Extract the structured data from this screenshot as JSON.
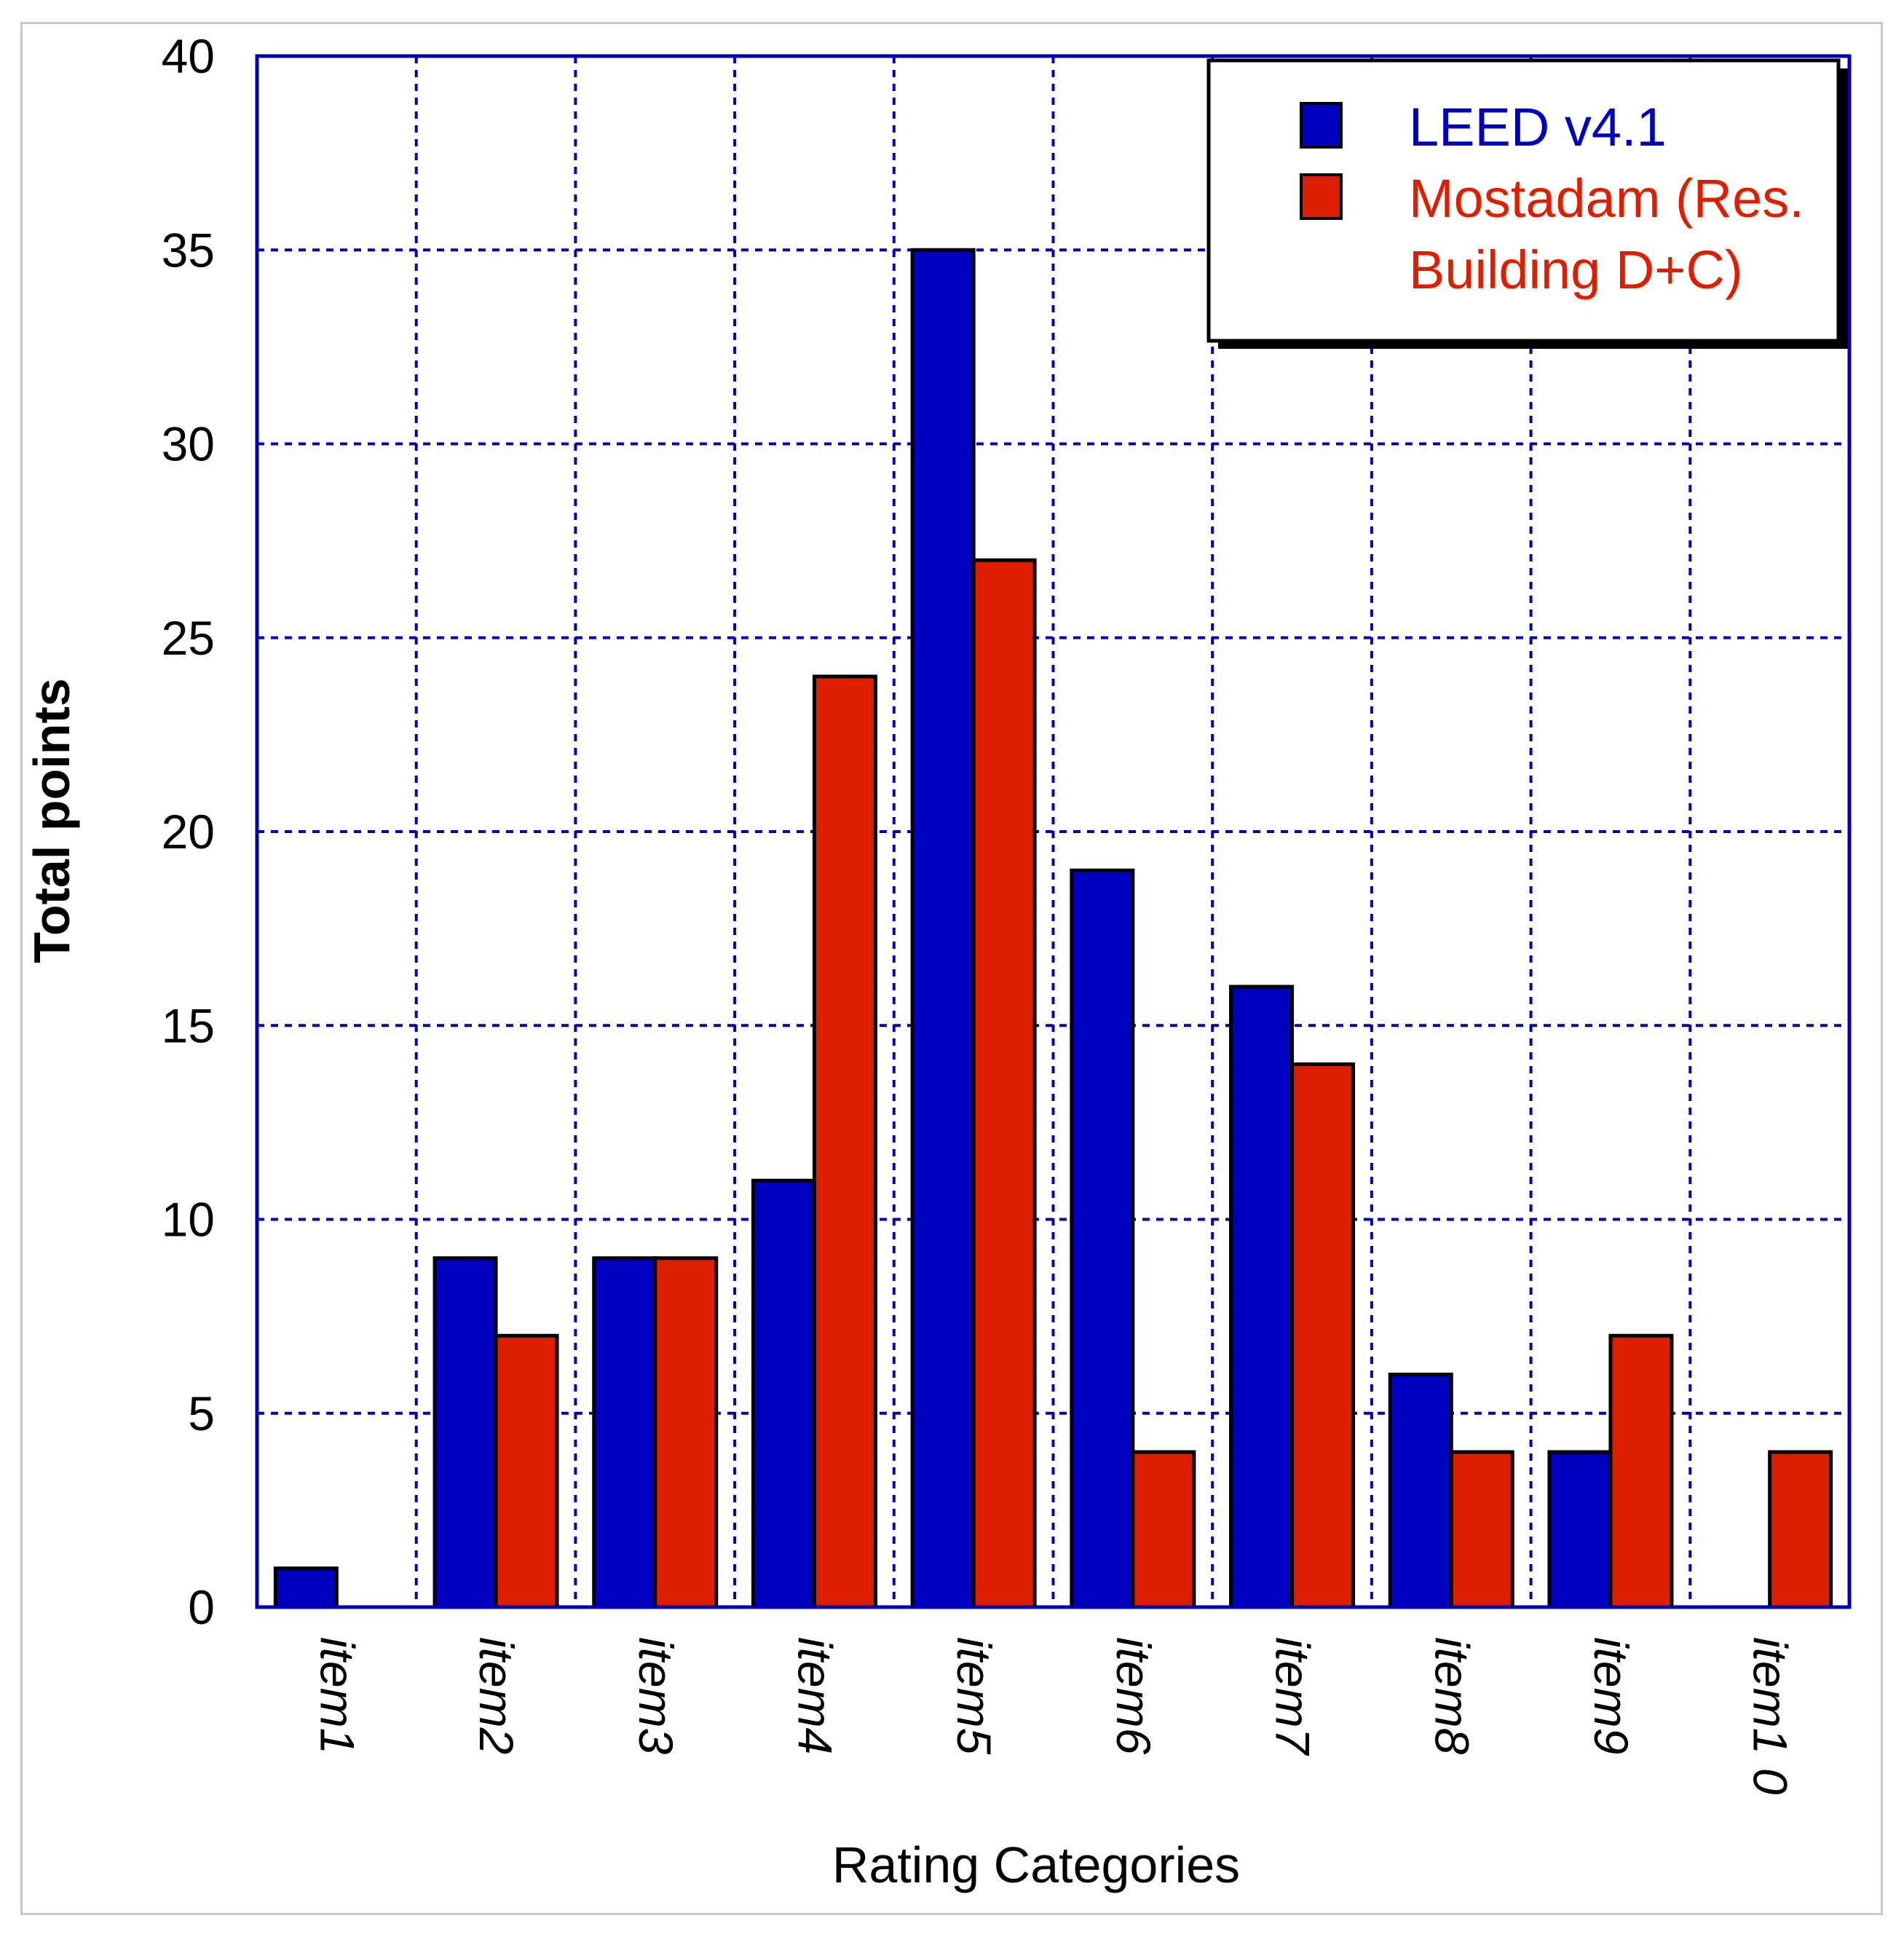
{
  "chart_data": {
    "type": "bar",
    "title": "",
    "xlabel": "Rating Categories",
    "ylabel": "Total points",
    "ylim": [
      0,
      40
    ],
    "yticks": [
      "0",
      "5",
      "10",
      "15",
      "20",
      "25",
      "30",
      "35",
      "40"
    ],
    "grid": true,
    "legend_position": "top-right",
    "categories": [
      "item1",
      "item2",
      "item3",
      "item4",
      "item5",
      "item6",
      "item7",
      "item8",
      "item9",
      "item1 0"
    ],
    "series": [
      {
        "name": "LEED v4.1",
        "color": "#0000c0",
        "values": [
          1,
          9,
          9,
          11,
          35,
          19,
          16,
          6,
          4,
          0
        ]
      },
      {
        "name": "Mostadam (Res. Building D+C)",
        "name_lines": [
          "Mostadam (Res.",
          "Building D+C)"
        ],
        "color": "#dd1e00",
        "values": [
          0,
          7,
          9,
          24,
          27,
          4,
          14,
          4,
          7,
          4
        ]
      }
    ]
  }
}
